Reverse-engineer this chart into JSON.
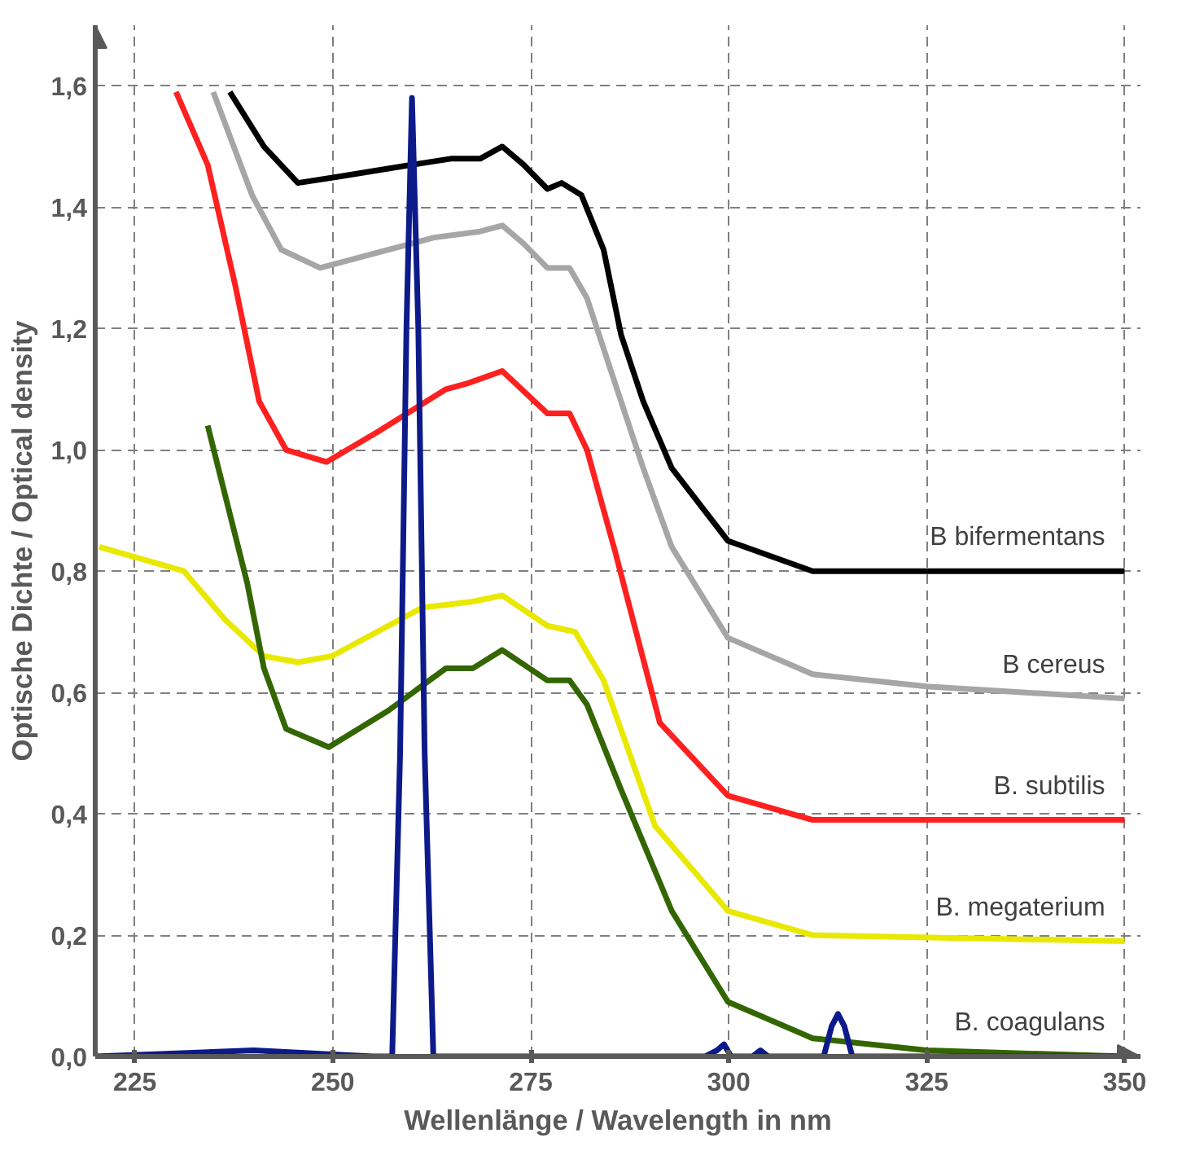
{
  "chart_data": {
    "type": "line",
    "xlabel": "Wellenlänge / Wavelength in nm",
    "ylabel": "Optische Dichte / Optical density",
    "xlim": [
      220,
      352
    ],
    "ylim": [
      0,
      1.7
    ],
    "xticks": [
      225,
      250,
      275,
      300,
      325,
      350
    ],
    "yticks": [
      {
        "value": 0,
        "label": "0,0"
      },
      {
        "value": 0.2,
        "label": "0,2"
      },
      {
        "value": 0.4,
        "label": "0,4"
      },
      {
        "value": 0.6,
        "label": "0,6"
      },
      {
        "value": 0.8,
        "label": "0,8"
      },
      {
        "value": 1.0,
        "label": "1,0"
      },
      {
        "value": 1.2,
        "label": "1,2"
      },
      {
        "value": 1.4,
        "label": "1,4"
      },
      {
        "value": 1.6,
        "label": "1,6"
      }
    ],
    "grid": true,
    "line_style": "solid",
    "marker": "none",
    "series": [
      {
        "name": "B bifermentans",
        "color": "#000000",
        "x": [
          237.0,
          241.3,
          245.6,
          250.5,
          260.0,
          264.9,
          268.6,
          271.4,
          274.1,
          277.1,
          278.9,
          281.4,
          284.2,
          286.4,
          289.2,
          292.8,
          299.9,
          310.6,
          350
        ],
        "values": [
          1.59,
          1.5,
          1.44,
          1.45,
          1.47,
          1.48,
          1.48,
          1.5,
          1.47,
          1.43,
          1.44,
          1.42,
          1.33,
          1.19,
          1.08,
          0.97,
          0.85,
          0.8,
          0.8
        ]
      },
      {
        "name": "B cereus",
        "color": "#a6a6a6",
        "x": [
          234.9,
          239.8,
          243.5,
          248.4,
          254.2,
          262.8,
          268.6,
          271.4,
          274.1,
          277.1,
          279.9,
          282.1,
          286.4,
          289.2,
          292.8,
          299.9,
          310.6,
          325,
          350
        ],
        "values": [
          1.59,
          1.42,
          1.33,
          1.3,
          1.32,
          1.35,
          1.36,
          1.37,
          1.34,
          1.3,
          1.3,
          1.25,
          1.08,
          0.97,
          0.84,
          0.69,
          0.63,
          0.61,
          0.59
        ]
      },
      {
        "name": "B. subtilis",
        "color": "#ff2020",
        "x": [
          230.2,
          234.2,
          237.7,
          240.7,
          244.1,
          249.2,
          255.7,
          264.3,
          267.1,
          271.4,
          277.1,
          279.9,
          282.1,
          285.7,
          291.3,
          299.9,
          310.6,
          350
        ],
        "values": [
          1.59,
          1.47,
          1.27,
          1.08,
          1.0,
          0.98,
          1.03,
          1.1,
          1.11,
          1.13,
          1.06,
          1.06,
          1.0,
          0.83,
          0.55,
          0.43,
          0.39,
          0.39
        ]
      },
      {
        "name": "B. megaterium",
        "color": "#e8e800",
        "x": [
          220.5,
          231.2,
          236.4,
          241.3,
          245.6,
          249.9,
          261.3,
          267.7,
          271.4,
          277.1,
          280.6,
          284.2,
          290.7,
          299.9,
          310.6,
          350
        ],
        "values": [
          0.84,
          0.8,
          0.72,
          0.66,
          0.65,
          0.66,
          0.74,
          0.75,
          0.76,
          0.71,
          0.7,
          0.62,
          0.38,
          0.24,
          0.2,
          0.19
        ]
      },
      {
        "name": "B. coagulans",
        "color": "#336600",
        "x": [
          234.2,
          239.2,
          241.3,
          244.1,
          249.5,
          257.0,
          264.3,
          267.7,
          271.4,
          277.1,
          279.9,
          282.1,
          286.4,
          292.8,
          299.9,
          310.6,
          325,
          350
        ],
        "values": [
          1.04,
          0.78,
          0.64,
          0.54,
          0.51,
          0.57,
          0.64,
          0.64,
          0.67,
          0.62,
          0.62,
          0.58,
          0.44,
          0.24,
          0.09,
          0.03,
          0.01,
          0.0
        ]
      },
      {
        "color": "#0d1a8a",
        "x": [
          220,
          240,
          255,
          257.5,
          258.5,
          259.3,
          260.0,
          260.8,
          261.6,
          262.7,
          270,
          280,
          297,
          298.5,
          299.4,
          300.3,
          303,
          304,
          305,
          312,
          313,
          313.8,
          314.6,
          315.6,
          330,
          350
        ],
        "values": [
          0.0,
          0.01,
          0.0,
          0.0,
          0.5,
          1.2,
          1.58,
          1.2,
          0.5,
          0.0,
          0.0,
          0.0,
          0.0,
          0.01,
          0.02,
          0.0,
          0.0,
          0.01,
          0.0,
          0.0,
          0.05,
          0.07,
          0.05,
          0.0,
          0.0,
          0.0
        ]
      }
    ]
  }
}
